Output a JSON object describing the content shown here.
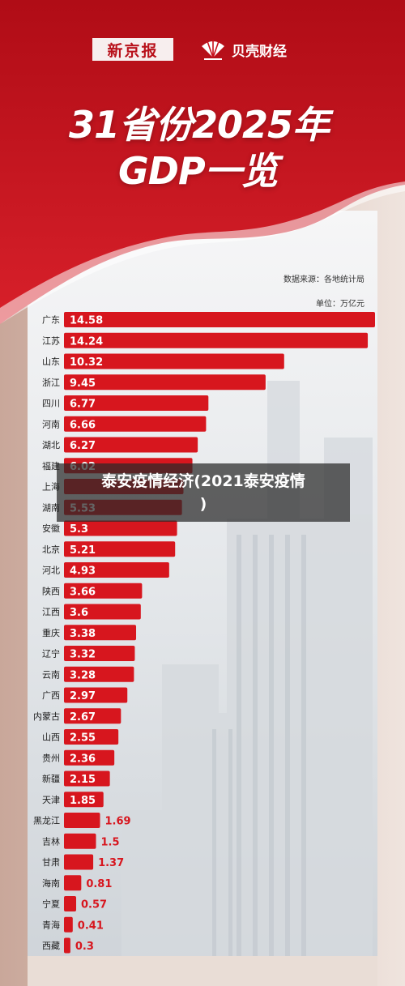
{
  "header": {
    "logo_left": "新京报",
    "logo_right": "贝壳财经",
    "title_line1": "31省份2025年",
    "title_line2": "GDP一览",
    "source": "数据来源：各地统计局",
    "unit": "单位：万亿元"
  },
  "overlay": {
    "line1": "泰安疫情经济(2021泰安疫情",
    "line2": ")"
  },
  "colors": {
    "bar": "#d7161e",
    "bar_dark": "#b5121a",
    "header_red": "#c8101c"
  },
  "chart_data": {
    "type": "bar",
    "orientation": "horizontal",
    "title": "31省份2025年GDP一览",
    "ylabel": "",
    "xlabel": "",
    "xlim": [
      0,
      14.58
    ],
    "categories": [
      "广东",
      "江苏",
      "山东",
      "浙江",
      "四川",
      "河南",
      "湖北",
      "福建",
      "上海",
      "湖南",
      "安徽",
      "北京",
      "河北",
      "陕西",
      "江西",
      "重庆",
      "辽宁",
      "云南",
      "广西",
      "内蒙古",
      "山西",
      "贵州",
      "新疆",
      "天津",
      "黑龙江",
      "吉林",
      "甘肃",
      "海南",
      "宁夏",
      "青海",
      "西藏"
    ],
    "values": [
      14.58,
      14.24,
      10.32,
      9.45,
      6.77,
      6.66,
      6.27,
      6.02,
      5.6,
      5.53,
      5.3,
      5.21,
      4.93,
      3.66,
      3.6,
      3.38,
      3.32,
      3.28,
      2.97,
      2.67,
      2.55,
      2.36,
      2.15,
      1.85,
      1.69,
      1.5,
      1.37,
      0.81,
      0.57,
      0.41,
      0.3
    ],
    "value_labels": [
      "14.58",
      "14.24",
      "10.32",
      "9.45",
      "6.77",
      "6.66",
      "6.27",
      "6.02",
      "",
      "5.53",
      "5.3",
      "5.21",
      "4.93",
      "3.66",
      "3.6",
      "3.38",
      "3.32",
      "3.28",
      "2.97",
      "2.67",
      "2.55",
      "2.36",
      "2.15",
      "1.85",
      "1.69",
      "1.5",
      "1.37",
      "0.81",
      "0.57",
      "0.41",
      "0.3"
    ]
  }
}
